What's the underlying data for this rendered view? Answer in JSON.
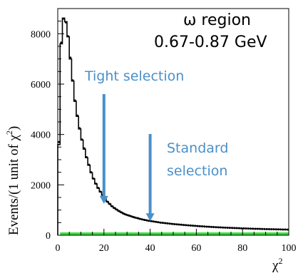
{
  "chart_data": {
    "type": "line",
    "title_line1": "ω region",
    "title_line2": "0.67-0.87 GeV",
    "xlabel": "χ",
    "xlabel_sup": "2",
    "ylabel_main": "Events/(1 unit of χ",
    "ylabel_sup": "2",
    "ylabel_close": ")",
    "xlim": [
      0,
      100
    ],
    "ylim": [
      0,
      9000
    ],
    "xticks": [
      0,
      20,
      40,
      60,
      80,
      100
    ],
    "yticks": [
      0,
      2000,
      4000,
      6000,
      8000
    ],
    "series": [
      {
        "kind": "data-points",
        "color": "#000000",
        "x": [
          0.5,
          1.5,
          2.5,
          3.5,
          4.5,
          5.5,
          6.5,
          7.5,
          8.5,
          9.5,
          10.5,
          11.5,
          12.5,
          13.5,
          14.5,
          15.5,
          16.5,
          17.5,
          18.5,
          19.5,
          20.5,
          21.5,
          22.5,
          23.5,
          24.5,
          25.5,
          26.5,
          27.5,
          28.5,
          29.5,
          30.5,
          31.5,
          32.5,
          33.5,
          34.5,
          35.5,
          36.5,
          37.5,
          38.5,
          39.5,
          40.5,
          41.5,
          42.5,
          43.5,
          44.5,
          45.5,
          46.5,
          47.5,
          48.5,
          49.5,
          50.5,
          51.5,
          52.5,
          53.5,
          54.5,
          55.5,
          56.5,
          57.5,
          58.5,
          59.5,
          60.5,
          61.5,
          62.5,
          63.5,
          64.5,
          65.5,
          66.5,
          67.5,
          68.5,
          69.5,
          70.5,
          71.5,
          72.5,
          73.5,
          74.5,
          75.5,
          76.5,
          77.5,
          78.5,
          79.5,
          80.5,
          81.5,
          82.5,
          83.5,
          84.5,
          85.5,
          86.5,
          87.5,
          88.5,
          89.5,
          90.5,
          91.5,
          92.5,
          93.5,
          94.5,
          95.5,
          96.5,
          97.5,
          98.5,
          99.5
        ],
        "y": [
          3700,
          7650,
          8600,
          8450,
          7900,
          7050,
          6150,
          5350,
          4750,
          4250,
          3800,
          3450,
          3100,
          2800,
          2500,
          2250,
          2050,
          1880,
          1730,
          1600,
          1440,
          1330,
          1240,
          1150,
          1080,
          1020,
          960,
          910,
          860,
          820,
          790,
          760,
          730,
          700,
          680,
          650,
          630,
          610,
          590,
          570,
          560,
          545,
          530,
          515,
          500,
          490,
          480,
          470,
          460,
          450,
          440,
          432,
          424,
          416,
          408,
          400,
          393,
          386,
          379,
          372,
          365,
          359,
          353,
          347,
          341,
          335,
          330,
          325,
          320,
          315,
          310,
          306,
          302,
          298,
          294,
          290,
          286,
          282,
          278,
          274,
          271,
          268,
          265,
          262,
          259,
          256,
          253,
          250,
          247,
          244,
          242,
          240,
          238,
          236,
          234,
          232,
          230,
          228,
          226,
          224
        ]
      },
      {
        "kind": "histogram",
        "color": "#000000",
        "y": [
          3600,
          7600,
          8620,
          8480,
          7880,
          7000,
          6120,
          5320,
          4720,
          4220,
          3780,
          3420,
          3080,
          2780,
          2480,
          2240,
          2040,
          1870,
          1720,
          1590,
          1440,
          1330,
          1240,
          1150,
          1080,
          1020,
          960,
          910,
          860,
          820,
          790,
          760,
          730,
          700,
          680,
          650,
          630,
          610,
          590,
          570,
          560,
          545,
          530,
          515,
          500,
          490,
          480,
          470,
          460,
          450,
          440,
          432,
          424,
          416,
          408,
          400,
          393,
          386,
          379,
          372,
          365,
          359,
          353,
          347,
          341,
          335,
          330,
          325,
          320,
          315,
          310,
          306,
          302,
          298,
          294,
          290,
          286,
          282,
          278,
          274,
          271,
          268,
          265,
          262,
          259,
          256,
          253,
          250,
          247,
          244,
          242,
          240,
          238,
          236,
          234,
          232,
          230,
          228,
          226,
          224
        ]
      },
      {
        "kind": "background-band",
        "color": "#33dd33",
        "y": 110
      }
    ],
    "annotations": [
      {
        "text": "Tight selection",
        "x_arrow": 20,
        "y_tip": 1250,
        "color": "#4a90c8"
      },
      {
        "text_line1": "Standard",
        "text_line2": "selection",
        "x_arrow": 40,
        "y_tip": 560,
        "color": "#4a90c8"
      }
    ]
  }
}
